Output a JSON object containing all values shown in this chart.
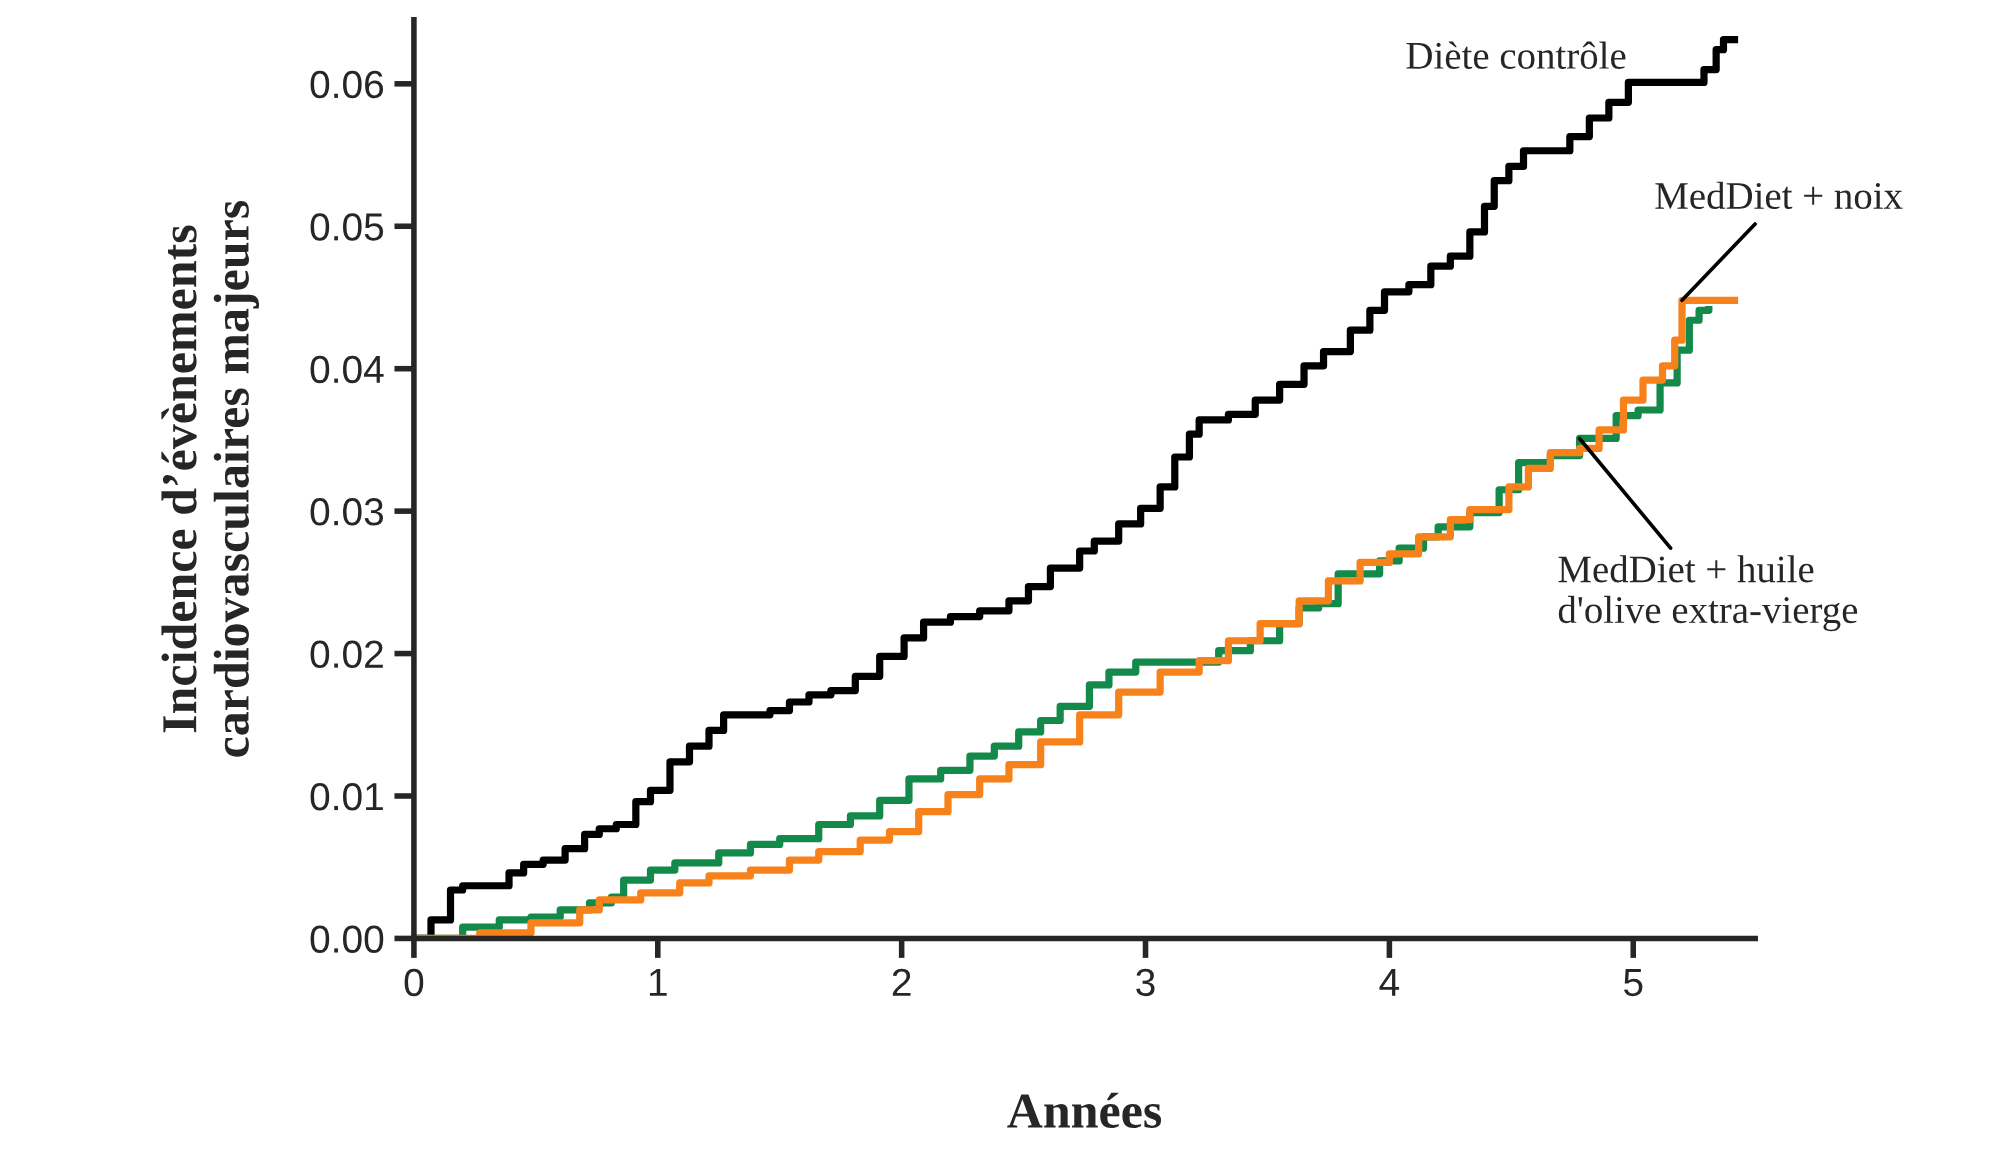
{
  "chart_data": {
    "type": "step",
    "xlabel": "Années",
    "ylabel": "Incidence d’évènements\ncardiovasculaires majeurs",
    "xlim": [
      0,
      5.5
    ],
    "ylim": [
      0,
      0.0645
    ],
    "xticks": [
      0,
      1,
      2,
      3,
      4,
      5
    ],
    "yticks": [
      {
        "value": 0,
        "label": "0.00"
      },
      {
        "value": 0.01,
        "label": "0.01"
      },
      {
        "value": 0.02,
        "label": "0.02"
      },
      {
        "value": 0.03,
        "label": "0.03"
      },
      {
        "value": 0.04,
        "label": "0.04"
      },
      {
        "value": 0.05,
        "label": "0.05"
      },
      {
        "value": 0.06,
        "label": "0.06"
      }
    ],
    "grid": false,
    "legend": false,
    "series": [
      {
        "name": "Diète contrôle",
        "color": "#000000",
        "x": [
          0,
          0.07,
          0.15,
          0.2,
          0.31,
          0.39,
          0.45,
          0.53,
          0.62,
          0.7,
          0.76,
          0.83,
          0.91,
          0.97,
          1.05,
          1.13,
          1.21,
          1.27,
          1.35,
          1.46,
          1.54,
          1.62,
          1.71,
          1.81,
          1.91,
          2.01,
          2.09,
          2.2,
          2.32,
          2.44,
          2.52,
          2.61,
          2.73,
          2.79,
          2.89,
          2.98,
          3.06,
          3.12,
          3.18,
          3.22,
          3.34,
          3.45,
          3.55,
          3.65,
          3.73,
          3.84,
          3.92,
          3.98,
          4.08,
          4.17,
          4.25,
          4.33,
          4.39,
          4.43,
          4.49,
          4.55,
          4.66,
          4.74,
          4.82,
          4.9,
          4.98,
          5.11,
          5.29,
          5.34,
          5.37,
          5.43
        ],
        "values": [
          0,
          0.0013,
          0.0034,
          0.0037,
          0.0037,
          0.0046,
          0.0052,
          0.0055,
          0.0063,
          0.0073,
          0.0077,
          0.008,
          0.0096,
          0.0104,
          0.0124,
          0.0135,
          0.0146,
          0.0157,
          0.0157,
          0.016,
          0.0166,
          0.0171,
          0.0174,
          0.0184,
          0.0198,
          0.0211,
          0.0222,
          0.0226,
          0.023,
          0.0237,
          0.0247,
          0.026,
          0.0272,
          0.0279,
          0.0291,
          0.0302,
          0.0317,
          0.0338,
          0.0354,
          0.0364,
          0.0368,
          0.0378,
          0.0389,
          0.0402,
          0.0412,
          0.0427,
          0.0441,
          0.0454,
          0.0459,
          0.0472,
          0.0479,
          0.0496,
          0.0514,
          0.0532,
          0.0542,
          0.0553,
          0.0553,
          0.0563,
          0.0576,
          0.0587,
          0.0601,
          0.0601,
          0.061,
          0.0624,
          0.0631,
          0.0631
        ]
      },
      {
        "name": "MedDiet + huile\nd'olive extra-vierge",
        "color": "#138a4a",
        "x": [
          0,
          0.15,
          0.2,
          0.35,
          0.48,
          0.6,
          0.72,
          0.81,
          0.86,
          0.97,
          1.07,
          1.25,
          1.38,
          1.5,
          1.66,
          1.79,
          1.91,
          2.03,
          2.16,
          2.28,
          2.38,
          2.48,
          2.57,
          2.65,
          2.77,
          2.85,
          2.96,
          3.18,
          3.3,
          3.43,
          3.55,
          3.63,
          3.71,
          3.79,
          3.96,
          4.04,
          4.14,
          4.2,
          4.33,
          4.45,
          4.53,
          4.66,
          4.78,
          4.93,
          5.02,
          5.11,
          5.18,
          5.23,
          5.27,
          5.31
        ],
        "values": [
          0,
          0,
          0.0008,
          0.0013,
          0.0015,
          0.002,
          0.0025,
          0.0029,
          0.0041,
          0.0048,
          0.0053,
          0.006,
          0.0066,
          0.007,
          0.008,
          0.0086,
          0.0097,
          0.0112,
          0.0118,
          0.0128,
          0.0135,
          0.0145,
          0.0153,
          0.0163,
          0.0178,
          0.0187,
          0.0194,
          0.0194,
          0.0202,
          0.0209,
          0.0221,
          0.0232,
          0.0235,
          0.0256,
          0.0265,
          0.0274,
          0.0282,
          0.0289,
          0.0299,
          0.0315,
          0.0334,
          0.0339,
          0.0351,
          0.0367,
          0.0371,
          0.039,
          0.0413,
          0.0434,
          0.0441,
          0.0444
        ]
      },
      {
        "name": "MedDiet + noix",
        "color": "#f7821b",
        "x": [
          0,
          0.19,
          0.27,
          0.48,
          0.68,
          0.76,
          0.93,
          1.09,
          1.21,
          1.38,
          1.54,
          1.66,
          1.83,
          1.95,
          2.07,
          2.19,
          2.32,
          2.44,
          2.57,
          2.73,
          2.89,
          3.06,
          3.22,
          3.34,
          3.47,
          3.63,
          3.75,
          3.88,
          4,
          4.12,
          4.25,
          4.33,
          4.49,
          4.57,
          4.66,
          4.78,
          4.86,
          4.96,
          5.04,
          5.12,
          5.17,
          5.2,
          5.43
        ],
        "values": [
          0,
          0,
          0.0004,
          0.0011,
          0.002,
          0.0027,
          0.0032,
          0.0039,
          0.0044,
          0.0048,
          0.0055,
          0.0061,
          0.0069,
          0.0075,
          0.0089,
          0.0101,
          0.0112,
          0.0122,
          0.0138,
          0.0157,
          0.0173,
          0.0187,
          0.0195,
          0.0209,
          0.0221,
          0.0237,
          0.0251,
          0.0264,
          0.027,
          0.0282,
          0.0294,
          0.0301,
          0.0317,
          0.033,
          0.0341,
          0.0344,
          0.0357,
          0.0378,
          0.0392,
          0.0402,
          0.042,
          0.0448,
          0.0448
        ]
      }
    ]
  }
}
